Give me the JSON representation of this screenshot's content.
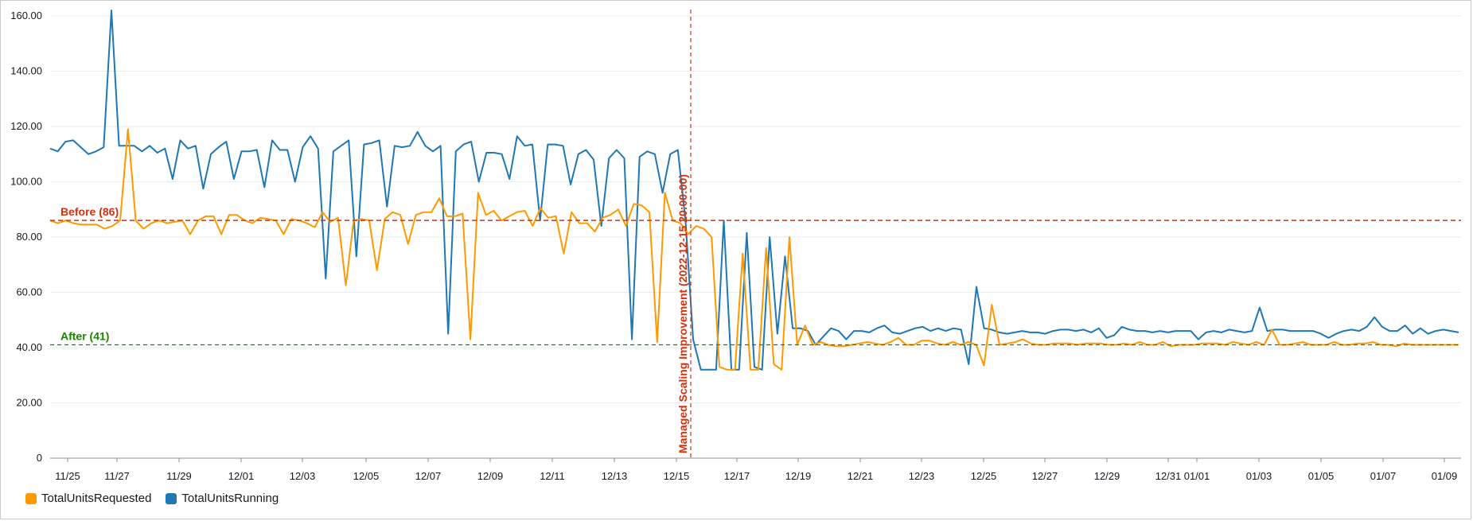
{
  "chart_data": {
    "type": "line",
    "title": "",
    "xlabel": "",
    "ylabel": "",
    "ylim": [
      0,
      160
    ],
    "yticks": [
      "0",
      "20.00",
      "40.00",
      "60.00",
      "80.00",
      "100.00",
      "120.00",
      "140.00",
      "160.00"
    ],
    "xticks": [
      "11/25",
      "11/27",
      "11/29",
      "12/01",
      "12/03",
      "12/05",
      "12/07",
      "12/09",
      "12/11",
      "12/13",
      "12/15",
      "12/17",
      "12/19",
      "12/21",
      "12/23",
      "12/25",
      "12/27",
      "12/29",
      "12/31",
      "01/01",
      "01/03",
      "01/05",
      "01/07",
      "01/09"
    ],
    "grid": true,
    "legend_position": "bottom-left",
    "annotations": {
      "before": {
        "label": "Before (86)",
        "value": 86,
        "color": "#d13212"
      },
      "after": {
        "label": "After (41)",
        "value": 41,
        "color": "#1d8102"
      },
      "vertical": {
        "label": "Managed Scaling Improvement (2022-12-15 20:00:00)",
        "x": "2022-12-15 20:00:00",
        "color": "#d13212"
      }
    },
    "series": [
      {
        "name": "TotalUnitsRequested",
        "color": "#ff9900",
        "values": [
          86,
          85,
          86,
          85,
          84.5,
          84.5,
          84.5,
          83,
          84,
          86,
          119,
          86,
          83,
          85,
          86,
          85,
          85.5,
          86,
          81,
          86,
          87.5,
          87.5,
          81,
          88,
          88,
          86,
          85,
          87,
          86.5,
          86,
          81,
          86.5,
          86,
          85,
          83.5,
          89,
          85.5,
          87,
          62.5,
          86,
          86.5,
          86,
          68,
          86.5,
          89,
          88,
          77.5,
          88,
          89,
          89,
          94,
          87.5,
          87.5,
          88.5,
          43,
          96,
          88,
          89.5,
          86,
          87.5,
          89,
          89.5,
          84,
          90.5,
          87,
          87.5,
          74,
          89,
          85,
          85,
          82,
          87,
          88,
          90,
          84,
          92,
          91.5,
          89,
          42,
          96,
          86,
          85,
          81,
          84,
          83,
          80,
          33,
          32,
          32,
          74,
          32,
          32,
          76,
          34,
          32,
          80,
          41,
          48,
          41,
          42,
          41,
          40.5,
          40.5,
          41,
          41.5,
          42,
          41.5,
          41,
          42,
          43.5,
          41,
          41,
          42.5,
          42.5,
          41.5,
          41,
          42,
          41,
          42,
          41,
          33.5,
          55.5,
          41,
          41.5,
          42,
          43,
          41.5,
          41,
          41,
          41.5,
          41.5,
          41.5,
          41,
          41.5,
          41.5,
          41.5,
          41,
          41,
          41.5,
          41,
          42,
          41,
          41,
          42,
          40.5,
          41,
          41,
          41,
          41.5,
          41.5,
          41.5,
          41,
          42,
          41.5,
          41,
          42,
          41,
          46.5,
          41,
          41,
          41.5,
          42,
          41,
          41,
          41,
          42,
          41,
          41,
          41.5,
          41.5,
          42,
          41,
          41,
          40.5,
          41.5,
          41,
          41,
          41,
          41,
          41,
          41,
          41
        ],
        "bounds": [
          86,
          85,
          86,
          85,
          84.5,
          84.5,
          84.5,
          83,
          84,
          86,
          119,
          86,
          83,
          85,
          86,
          85,
          85.5,
          86,
          81,
          86,
          87.5,
          87.5,
          81,
          88,
          88,
          86,
          85,
          87,
          86.5,
          86,
          81,
          86.5,
          86,
          85,
          83.5,
          89,
          85.5,
          87,
          62.5,
          86,
          86.5,
          86,
          68,
          86.5,
          89,
          88,
          77.5,
          88,
          89,
          89,
          94,
          87.5,
          87.5,
          88.5,
          43,
          96,
          88,
          89.5,
          86,
          87.5,
          89,
          89.5,
          84,
          90.5,
          87,
          87.5,
          74,
          89,
          85,
          85,
          82,
          87,
          88,
          90,
          84,
          92,
          91.5,
          89,
          42,
          96,
          86,
          85,
          81,
          84,
          83,
          80,
          33,
          32,
          32,
          74,
          32,
          32,
          76,
          34,
          32,
          80,
          41,
          48,
          41,
          42,
          41,
          40.5,
          40.5,
          41,
          41.5,
          42,
          41.5,
          41,
          42,
          43.5,
          41,
          41,
          42.5,
          42.5,
          41.5,
          41,
          42,
          41,
          42,
          41,
          33.5,
          55.5,
          41,
          41.5,
          42,
          43,
          41.5,
          41,
          41,
          41.5,
          41.5,
          41.5,
          41,
          41.5,
          41.5,
          41.5,
          41,
          41,
          41.5,
          41,
          42,
          41,
          41,
          42,
          40.5,
          41,
          41,
          41,
          41.5,
          41.5,
          41.5,
          41,
          42,
          41.5,
          41,
          42,
          41,
          46.5,
          41,
          41,
          41.5,
          42,
          41,
          41,
          41,
          42,
          41,
          41,
          41.5,
          41.5,
          42,
          41,
          41,
          40.5,
          41.5,
          41,
          41,
          41,
          41,
          41,
          41,
          41
        ]
      },
      {
        "name": "TotalUnitsRunning",
        "color": "#1f77b4",
        "values": [
          112,
          111,
          114.5,
          115,
          112.5,
          110,
          111,
          112.5,
          162,
          113,
          113,
          113,
          111,
          113,
          110.5,
          112,
          101,
          115,
          112,
          113,
          97.5,
          110,
          112.5,
          114.5,
          101,
          111,
          111,
          111.5,
          98,
          115,
          111.5,
          111.5,
          100,
          112.5,
          116.5,
          112,
          65,
          111,
          113,
          115,
          73,
          113.5,
          114,
          115,
          91,
          113,
          112.5,
          113,
          118,
          113,
          111,
          113,
          45,
          111,
          113.5,
          114.5,
          100,
          110.5,
          110.5,
          110,
          101,
          116.5,
          113,
          113.5,
          86,
          113.5,
          113.5,
          113,
          99,
          110,
          111.5,
          108,
          84,
          108.5,
          111.5,
          108.5,
          43,
          109,
          111,
          110,
          96,
          110,
          111.5,
          86,
          43,
          32,
          32,
          32,
          86,
          32,
          32,
          81.5,
          33,
          32,
          80,
          45,
          73,
          47,
          47,
          46,
          41,
          44,
          47,
          46,
          43,
          46,
          46,
          45.5,
          47,
          48,
          45.5,
          45,
          46,
          47,
          47.5,
          46,
          47,
          46,
          47,
          46.5,
          34,
          62,
          47,
          46.5,
          45.5,
          45,
          45.5,
          46,
          45.5,
          45.5,
          45,
          46,
          46.5,
          46.5,
          46,
          46.5,
          45.5,
          47,
          43.5,
          44.5,
          47.5,
          46.5,
          46,
          46,
          45.5,
          46,
          45.5,
          46,
          46,
          46,
          43,
          45.5,
          46,
          45.5,
          46.5,
          46,
          45.5,
          46,
          54.5,
          46,
          46.5,
          46.5,
          46,
          46,
          46,
          46,
          45,
          43.5,
          45,
          46,
          46.5,
          46,
          47.5,
          51,
          47.5,
          46,
          46,
          48,
          45,
          47,
          45,
          46,
          46.5,
          46,
          45.5
        ]
      }
    ]
  }
}
